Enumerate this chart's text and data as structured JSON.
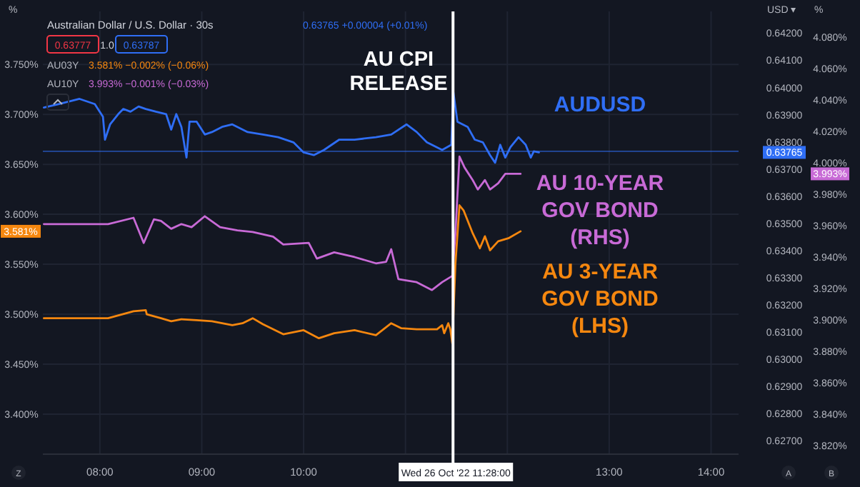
{
  "chart_data": {
    "type": "line",
    "title": "Australian Dollar / U.S. Dollar · 30s",
    "grid": true,
    "xlim": [
      7.44,
      14.27
    ],
    "xticks": [
      {
        "value": 8,
        "label": "08:00"
      },
      {
        "value": 9,
        "label": "09:00"
      },
      {
        "value": 10,
        "label": "10:00"
      },
      {
        "value": 11,
        "label": null
      },
      {
        "value": 12,
        "label": null
      },
      {
        "value": 13,
        "label": "13:00"
      },
      {
        "value": 14,
        "label": "14:00"
      }
    ],
    "ylim": [
      3.36,
      3.803
    ],
    "yticks": [
      {
        "value": 3.4,
        "label": "3.400%"
      },
      {
        "value": 3.45,
        "label": "3.450%"
      },
      {
        "value": 3.5,
        "label": "3.500%"
      },
      {
        "value": 3.55,
        "label": "3.550%"
      },
      {
        "value": 3.6,
        "label": "3.600%"
      },
      {
        "value": 3.65,
        "label": "3.650%"
      },
      {
        "value": 3.7,
        "label": "3.700%"
      },
      {
        "value": 3.75,
        "label": "3.750%"
      }
    ],
    "y2lim": [
      0.6265,
      0.6428
    ],
    "y2ticks": [
      {
        "value": 0.627,
        "label": "0.62700"
      },
      {
        "value": 0.628,
        "label": "0.62800"
      },
      {
        "value": 0.629,
        "label": "0.62900"
      },
      {
        "value": 0.63,
        "label": "0.63000"
      },
      {
        "value": 0.631,
        "label": "0.63100"
      },
      {
        "value": 0.632,
        "label": "0.63200"
      },
      {
        "value": 0.633,
        "label": "0.63300"
      },
      {
        "value": 0.634,
        "label": "0.63400"
      },
      {
        "value": 0.635,
        "label": "0.63500"
      },
      {
        "value": 0.636,
        "label": "0.63600"
      },
      {
        "value": 0.637,
        "label": "0.63700"
      },
      {
        "value": 0.638,
        "label": "0.63800"
      },
      {
        "value": 0.639,
        "label": "0.63900"
      },
      {
        "value": 0.64,
        "label": "0.64000"
      },
      {
        "value": 0.641,
        "label": "0.64100"
      },
      {
        "value": 0.642,
        "label": "0.64200"
      }
    ],
    "y3lim": [
      3.8145,
      4.0964
    ],
    "y3ticks": [
      {
        "value": 3.82,
        "label": "3.820%"
      },
      {
        "value": 3.84,
        "label": "3.840%"
      },
      {
        "value": 3.86,
        "label": "3.860%"
      },
      {
        "value": 3.88,
        "label": "3.880%"
      },
      {
        "value": 3.9,
        "label": "3.900%"
      },
      {
        "value": 3.92,
        "label": "3.920%"
      },
      {
        "value": 3.94,
        "label": "3.940%"
      },
      {
        "value": 3.96,
        "label": "3.960%"
      },
      {
        "value": 3.98,
        "label": "3.980%"
      },
      {
        "value": 4.0,
        "label": "4.000%"
      },
      {
        "value": 4.02,
        "label": "4.020%"
      },
      {
        "value": 4.04,
        "label": "4.040%"
      },
      {
        "value": 4.06,
        "label": "4.060%"
      },
      {
        "value": 4.08,
        "label": "4.080%"
      }
    ],
    "series": [
      {
        "name": "AUDUSD",
        "color": "#2f6ef5",
        "axis": "y2",
        "x": [
          7.45,
          7.6,
          7.8,
          7.95,
          8.03,
          8.05,
          8.1,
          8.18,
          8.23,
          8.3,
          8.38,
          8.45,
          8.55,
          8.65,
          8.7,
          8.75,
          8.8,
          8.85,
          8.88,
          8.95,
          9.03,
          9.1,
          9.2,
          9.3,
          9.45,
          9.6,
          9.75,
          9.9,
          10.0,
          10.1,
          10.2,
          10.35,
          10.5,
          10.71,
          10.86,
          11.01,
          11.11,
          11.21,
          11.36,
          11.45,
          11.47,
          11.51,
          11.61,
          11.68,
          11.76,
          11.83,
          11.88,
          11.93,
          11.98,
          12.03,
          12.11,
          12.18,
          12.23,
          12.26,
          12.31
        ],
        "values": [
          0.63926,
          0.63939,
          0.63958,
          0.63939,
          0.63892,
          0.63808,
          0.63864,
          0.63902,
          0.63921,
          0.63911,
          0.6393,
          0.63921,
          0.63911,
          0.63902,
          0.63845,
          0.63902,
          0.63855,
          0.63742,
          0.63874,
          0.63874,
          0.63827,
          0.63836,
          0.63855,
          0.63864,
          0.63836,
          0.63827,
          0.63817,
          0.63798,
          0.63761,
          0.63751,
          0.6377,
          0.63808,
          0.63808,
          0.63817,
          0.63827,
          0.63864,
          0.63836,
          0.63798,
          0.6377,
          0.63789,
          0.63983,
          0.63874,
          0.63855,
          0.63808,
          0.63798,
          0.63751,
          0.63723,
          0.63789,
          0.63742,
          0.6378,
          0.63817,
          0.63789,
          0.63742,
          0.63765,
          0.63761
        ]
      },
      {
        "name": "AU 10-YEAR GOV BOND (RHS)",
        "color": "#c86ad6",
        "axis": "y3",
        "x": [
          7.45,
          8.08,
          8.33,
          8.43,
          8.53,
          8.6,
          8.7,
          8.8,
          8.9,
          9.03,
          9.18,
          9.35,
          9.5,
          9.7,
          9.8,
          10.05,
          10.13,
          10.3,
          10.5,
          10.71,
          10.81,
          10.86,
          10.93,
          11.11,
          11.26,
          11.36,
          11.46,
          11.49,
          11.53,
          11.58,
          11.66,
          11.71,
          11.78,
          11.83,
          11.91,
          11.98,
          12.13
        ],
        "values": [
          3.961,
          3.961,
          3.965,
          3.949,
          3.964,
          3.963,
          3.958,
          3.961,
          3.959,
          3.966,
          3.959,
          3.957,
          3.956,
          3.953,
          3.948,
          3.949,
          3.939,
          3.943,
          3.94,
          3.936,
          3.937,
          3.945,
          3.926,
          3.924,
          3.919,
          3.924,
          3.928,
          3.955,
          4.004,
          3.997,
          3.989,
          3.983,
          3.989,
          3.983,
          3.987,
          3.993,
          3.993
        ]
      },
      {
        "name": "AU 3-YEAR GOV BOND (LHS)",
        "color": "#f5870f",
        "x": [
          7.45,
          8.08,
          8.33,
          8.45,
          8.46,
          8.6,
          8.7,
          8.8,
          8.95,
          9.1,
          9.3,
          9.4,
          9.5,
          9.6,
          9.8,
          10.0,
          10.15,
          10.3,
          10.5,
          10.71,
          10.86,
          10.96,
          11.11,
          11.31,
          11.36,
          11.38,
          11.42,
          11.44,
          11.46,
          11.49,
          11.53,
          11.57,
          11.66,
          11.73,
          11.78,
          11.83,
          11.91,
          12.01,
          12.13
        ],
        "values": [
          3.496,
          3.496,
          3.503,
          3.504,
          3.5,
          3.496,
          3.493,
          3.495,
          3.494,
          3.493,
          3.489,
          3.491,
          3.496,
          3.49,
          3.48,
          3.484,
          3.476,
          3.481,
          3.484,
          3.479,
          3.491,
          3.486,
          3.485,
          3.485,
          3.489,
          3.481,
          3.491,
          3.485,
          3.471,
          3.55,
          3.609,
          3.604,
          3.581,
          3.566,
          3.578,
          3.564,
          3.573,
          3.576,
          3.583
        ]
      }
    ],
    "ref_lines": [
      {
        "axis": "y2",
        "value": 0.63765,
        "color": "#2f6ef5"
      },
      {
        "axis": "x",
        "value": 11.4667,
        "label": "Wed 26 Oct '22   11:28:00",
        "color": "#ffffff"
      }
    ],
    "annotations": [
      "0.63765 +0.00004 (+0.01%)",
      "0.63777",
      "1.0",
      "0.63787",
      "AU03Y",
      "3.581% −0.002% (−0.06%)",
      "AU10Y",
      "3.993% −0.001% (−0.03%)",
      "AU CPI RELEASE",
      "%",
      "USD ▾",
      "%",
      "3.581%",
      "0.63765",
      "3.993%",
      "Z",
      "A",
      "B"
    ]
  }
}
